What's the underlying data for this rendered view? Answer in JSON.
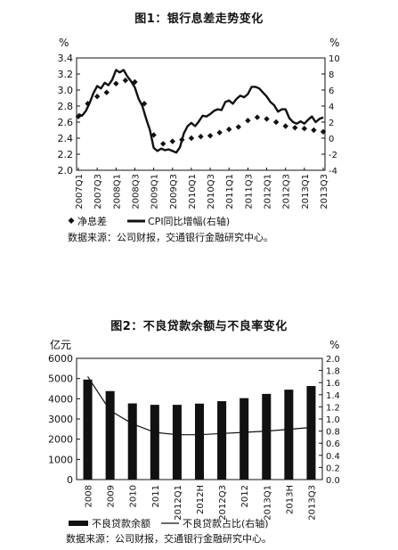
{
  "charts": [
    {
      "title": "图1：银行息差走势变化",
      "source": "数据来源：公司财报，交通银行金融研究中心。",
      "chart_data": {
        "type": "line",
        "title": "图1：银行息差走势变化",
        "left_unit": "%",
        "right_unit": "%",
        "ylim_left": [
          2.0,
          3.4
        ],
        "yticks_left": [
          "2.0",
          "2.2",
          "2.4",
          "2.6",
          "2.8",
          "3.0",
          "3.2",
          "3.4"
        ],
        "ylim_right": [
          -4,
          10
        ],
        "yticks_right": [
          "-4",
          "-2",
          "0",
          "2",
          "4",
          "6",
          "8",
          "10"
        ],
        "x_ticks": [
          "2007Q1",
          "2007Q3",
          "2008Q1",
          "2008Q3",
          "2009Q1",
          "2009Q3",
          "2010Q1",
          "2010Q3",
          "2011Q1",
          "2011Q3",
          "2012Q1",
          "2012Q3",
          "2013Q1",
          "2013Q3"
        ],
        "series": [
          {
            "name": "净息差",
            "axis": "left",
            "style": "diamond-markers",
            "values": [
              2.67,
              2.83,
              2.92,
              2.97,
              3.08,
              3.12,
              3.1,
              2.83,
              2.44,
              2.33,
              2.36,
              2.38,
              2.4,
              2.42,
              2.43,
              2.47,
              2.51,
              2.54,
              2.62,
              2.66,
              2.64,
              2.6,
              2.55,
              2.53,
              2.52,
              2.5,
              2.48
            ]
          },
          {
            "name": "CPI同比增幅(右轴)",
            "axis": "right",
            "style": "thick-line",
            "x": [
              0,
              0.4,
              0.8,
              1.2,
              1.6,
              2.0,
              2.4,
              2.8,
              3.2,
              3.6,
              4.0,
              4.4,
              4.8,
              5.2,
              5.6,
              6.0,
              6.4,
              6.8,
              7.2,
              7.6,
              8.0,
              8.4,
              8.8,
              9.2,
              9.6,
              10.0,
              10.4,
              10.8,
              11.2,
              11.6,
              12.0,
              12.4,
              12.8,
              13.2,
              13.6,
              14.0,
              14.4,
              14.8,
              15.2,
              15.6,
              16.0,
              16.4,
              16.8,
              17.2,
              17.6,
              18.0,
              18.4,
              18.8,
              19.2,
              19.6,
              20.0,
              20.4,
              20.8,
              21.2,
              21.6,
              22.0,
              22.4,
              22.8,
              23.2,
              23.6,
              24.0,
              24.4,
              24.8,
              25.2,
              25.6,
              26.0
            ],
            "values": [
              3.0,
              2.8,
              3.4,
              4.4,
              5.6,
              6.5,
              6.2,
              6.9,
              6.6,
              7.3,
              8.5,
              8.2,
              8.5,
              7.7,
              7.1,
              6.3,
              4.9,
              4.0,
              2.4,
              1.0,
              -1.2,
              -1.6,
              -1.3,
              -1.5,
              -1.4,
              -1.6,
              -1.8,
              -1.1,
              0.6,
              1.5,
              1.9,
              1.5,
              2.1,
              2.8,
              2.7,
              3.0,
              3.4,
              3.6,
              3.5,
              4.5,
              4.7,
              4.3,
              4.9,
              5.3,
              5.1,
              5.5,
              6.4,
              6.4,
              6.2,
              5.7,
              5.2,
              4.5,
              4.1,
              3.3,
              3.6,
              3.6,
              2.5,
              2.0,
              1.8,
              2.1,
              1.8,
              2.3,
              2.7,
              2.0,
              2.4,
              2.6
            ]
          }
        ],
        "legend": [
          "净息差",
          "CPI同比增幅(右轴)"
        ]
      }
    },
    {
      "title": "图2：不良贷款余额与不良率变化",
      "source": "数据来源：公司财报，交通银行金融研究中心。",
      "chart_data": {
        "type": "bar",
        "title": "图2：不良贷款余额与不良率变化",
        "left_unit": "亿元",
        "right_unit": "%",
        "categories": [
          "2008",
          "2009",
          "2010",
          "2011",
          "2012Q1",
          "2012H",
          "2012Q3",
          "2012",
          "2013Q1",
          "2013H",
          "2013Q3"
        ],
        "ylim_left": [
          0,
          6000
        ],
        "yticks_left": [
          "0",
          "1000",
          "2000",
          "3000",
          "4000",
          "5000",
          "6000"
        ],
        "ylim_right": [
          0,
          2.0
        ],
        "yticks_right": [
          "0.0",
          "0.2",
          "0.4",
          "0.6",
          "0.8",
          "1.0",
          "1.2",
          "1.4",
          "1.6",
          "1.8",
          "2.0"
        ],
        "series": [
          {
            "name": "不良贷款余额",
            "axis": "left",
            "values": [
              4950,
              4380,
              3770,
              3700,
              3700,
              3760,
              3880,
              4030,
              4240,
              4450,
              4630
            ]
          },
          {
            "name": "不良贷款占比(右轴)",
            "axis": "right",
            "values": [
              1.7,
              1.14,
              0.92,
              0.78,
              0.74,
              0.74,
              0.76,
              0.78,
              0.8,
              0.83,
              0.86
            ]
          }
        ],
        "legend": [
          "不良贷款余额",
          "不良贷款占比(右轴)"
        ]
      }
    }
  ]
}
